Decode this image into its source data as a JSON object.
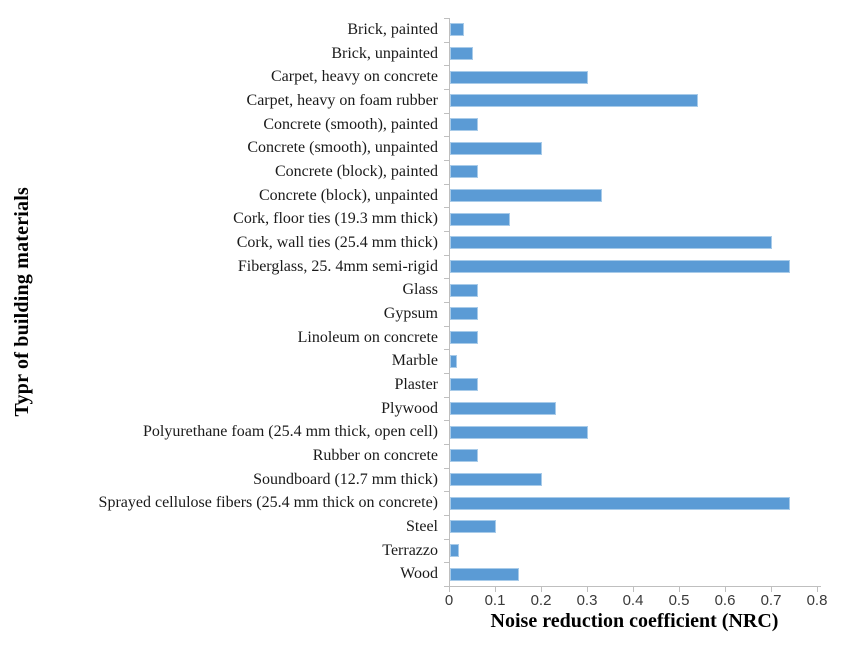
{
  "chart_data": {
    "type": "bar",
    "orientation": "horizontal",
    "title": "",
    "xlabel": "Noise reduction coefficient (NRC)",
    "ylabel": "Typr of building materials",
    "xlim": [
      0,
      0.8
    ],
    "xtick_labels": [
      "0",
      "0.1",
      "0.2",
      "0.3",
      "0.4",
      "0.5",
      "0.6",
      "0.7",
      "0.8"
    ],
    "grid": false,
    "legend": false,
    "bar_color": "#5B9BD5",
    "bar_border_color": "#A8CBE9",
    "axis_color": "#BFBFBF",
    "categories": [
      "Brick, painted",
      "Brick, unpainted",
      "Carpet, heavy on concrete",
      "Carpet, heavy on foam rubber",
      "Concrete (smooth), painted",
      "Concrete (smooth), unpainted",
      "Concrete (block), painted",
      "Concrete (block), unpainted",
      "Cork, floor ties (19.3 mm thick)",
      "Cork, wall ties (25.4 mm thick)",
      "Fiberglass, 25. 4mm semi-rigid",
      "Glass",
      "Gypsum",
      "Linoleum on concrete",
      "Marble",
      "Plaster",
      "Plywood",
      "Polyurethane foam (25.4 mm thick, open cell)",
      "Rubber on concrete",
      "Soundboard (12.7 mm thick)",
      "Sprayed cellulose fibers (25.4 mm thick on concrete)",
      "Steel",
      "Terrazzo",
      "Wood"
    ],
    "values": [
      0.03,
      0.05,
      0.3,
      0.54,
      0.06,
      0.2,
      0.06,
      0.33,
      0.13,
      0.7,
      0.74,
      0.06,
      0.06,
      0.06,
      0.015,
      0.06,
      0.23,
      0.3,
      0.06,
      0.2,
      0.74,
      0.1,
      0.02,
      0.15
    ]
  }
}
